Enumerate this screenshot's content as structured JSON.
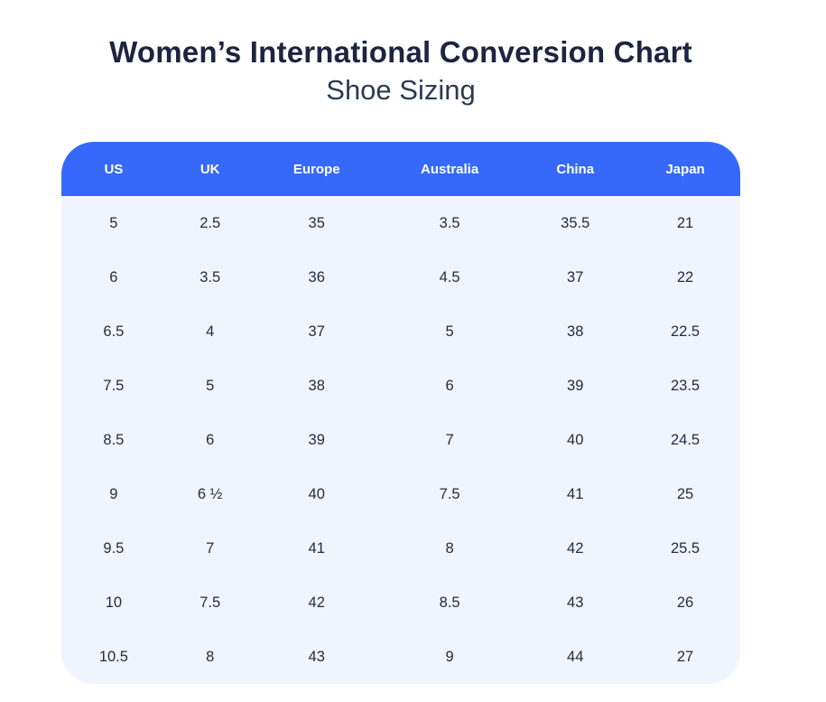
{
  "page": {
    "title": "Women’s International Conversion Chart",
    "subtitle": "Shoe Sizing"
  },
  "table": {
    "columns": [
      "US",
      "UK",
      "Europe",
      "Australia",
      "China",
      "Japan"
    ],
    "rows": [
      [
        "5",
        "2.5",
        "35",
        "3.5",
        "35.5",
        "21"
      ],
      [
        "6",
        "3.5",
        "36",
        "4.5",
        "37",
        "22"
      ],
      [
        "6.5",
        "4",
        "37",
        "5",
        "38",
        "22.5"
      ],
      [
        "7.5",
        "5",
        "38",
        "6",
        "39",
        "23.5"
      ],
      [
        "8.5",
        "6",
        "39",
        "7",
        "40",
        "24.5"
      ],
      [
        "9",
        "6 ½",
        "40",
        "7.5",
        "41",
        "25"
      ],
      [
        "9.5",
        "7",
        "41",
        "8",
        "42",
        "25.5"
      ],
      [
        "10",
        "7.5",
        "42",
        "8.5",
        "43",
        "26"
      ],
      [
        "10.5",
        "8",
        "43",
        "9",
        "44",
        "27"
      ]
    ]
  },
  "colors": {
    "header_bg": "#3568FB",
    "header_text": "#FFFFFF",
    "body_bg": "#F0F4FD",
    "cell_text": "#212B46",
    "title_text": "#1C2540",
    "subtitle_text": "#2C3A52",
    "page_bg": "#FFFFFF"
  },
  "chart_data": {
    "type": "table",
    "title": "Women’s International Conversion Chart",
    "subtitle": "Shoe Sizing",
    "columns": [
      "US",
      "UK",
      "Europe",
      "Australia",
      "China",
      "Japan"
    ],
    "rows": [
      [
        "5",
        "2.5",
        "35",
        "3.5",
        "35.5",
        "21"
      ],
      [
        "6",
        "3.5",
        "36",
        "4.5",
        "37",
        "22"
      ],
      [
        "6.5",
        "4",
        "37",
        "5",
        "38",
        "22.5"
      ],
      [
        "7.5",
        "5",
        "38",
        "6",
        "39",
        "23.5"
      ],
      [
        "8.5",
        "6",
        "39",
        "7",
        "40",
        "24.5"
      ],
      [
        "9",
        "6 ½",
        "40",
        "7.5",
        "41",
        "25"
      ],
      [
        "9.5",
        "7",
        "41",
        "8",
        "42",
        "25.5"
      ],
      [
        "10",
        "7.5",
        "42",
        "8.5",
        "43",
        "26"
      ],
      [
        "10.5",
        "8",
        "43",
        "9",
        "44",
        "27"
      ]
    ]
  }
}
